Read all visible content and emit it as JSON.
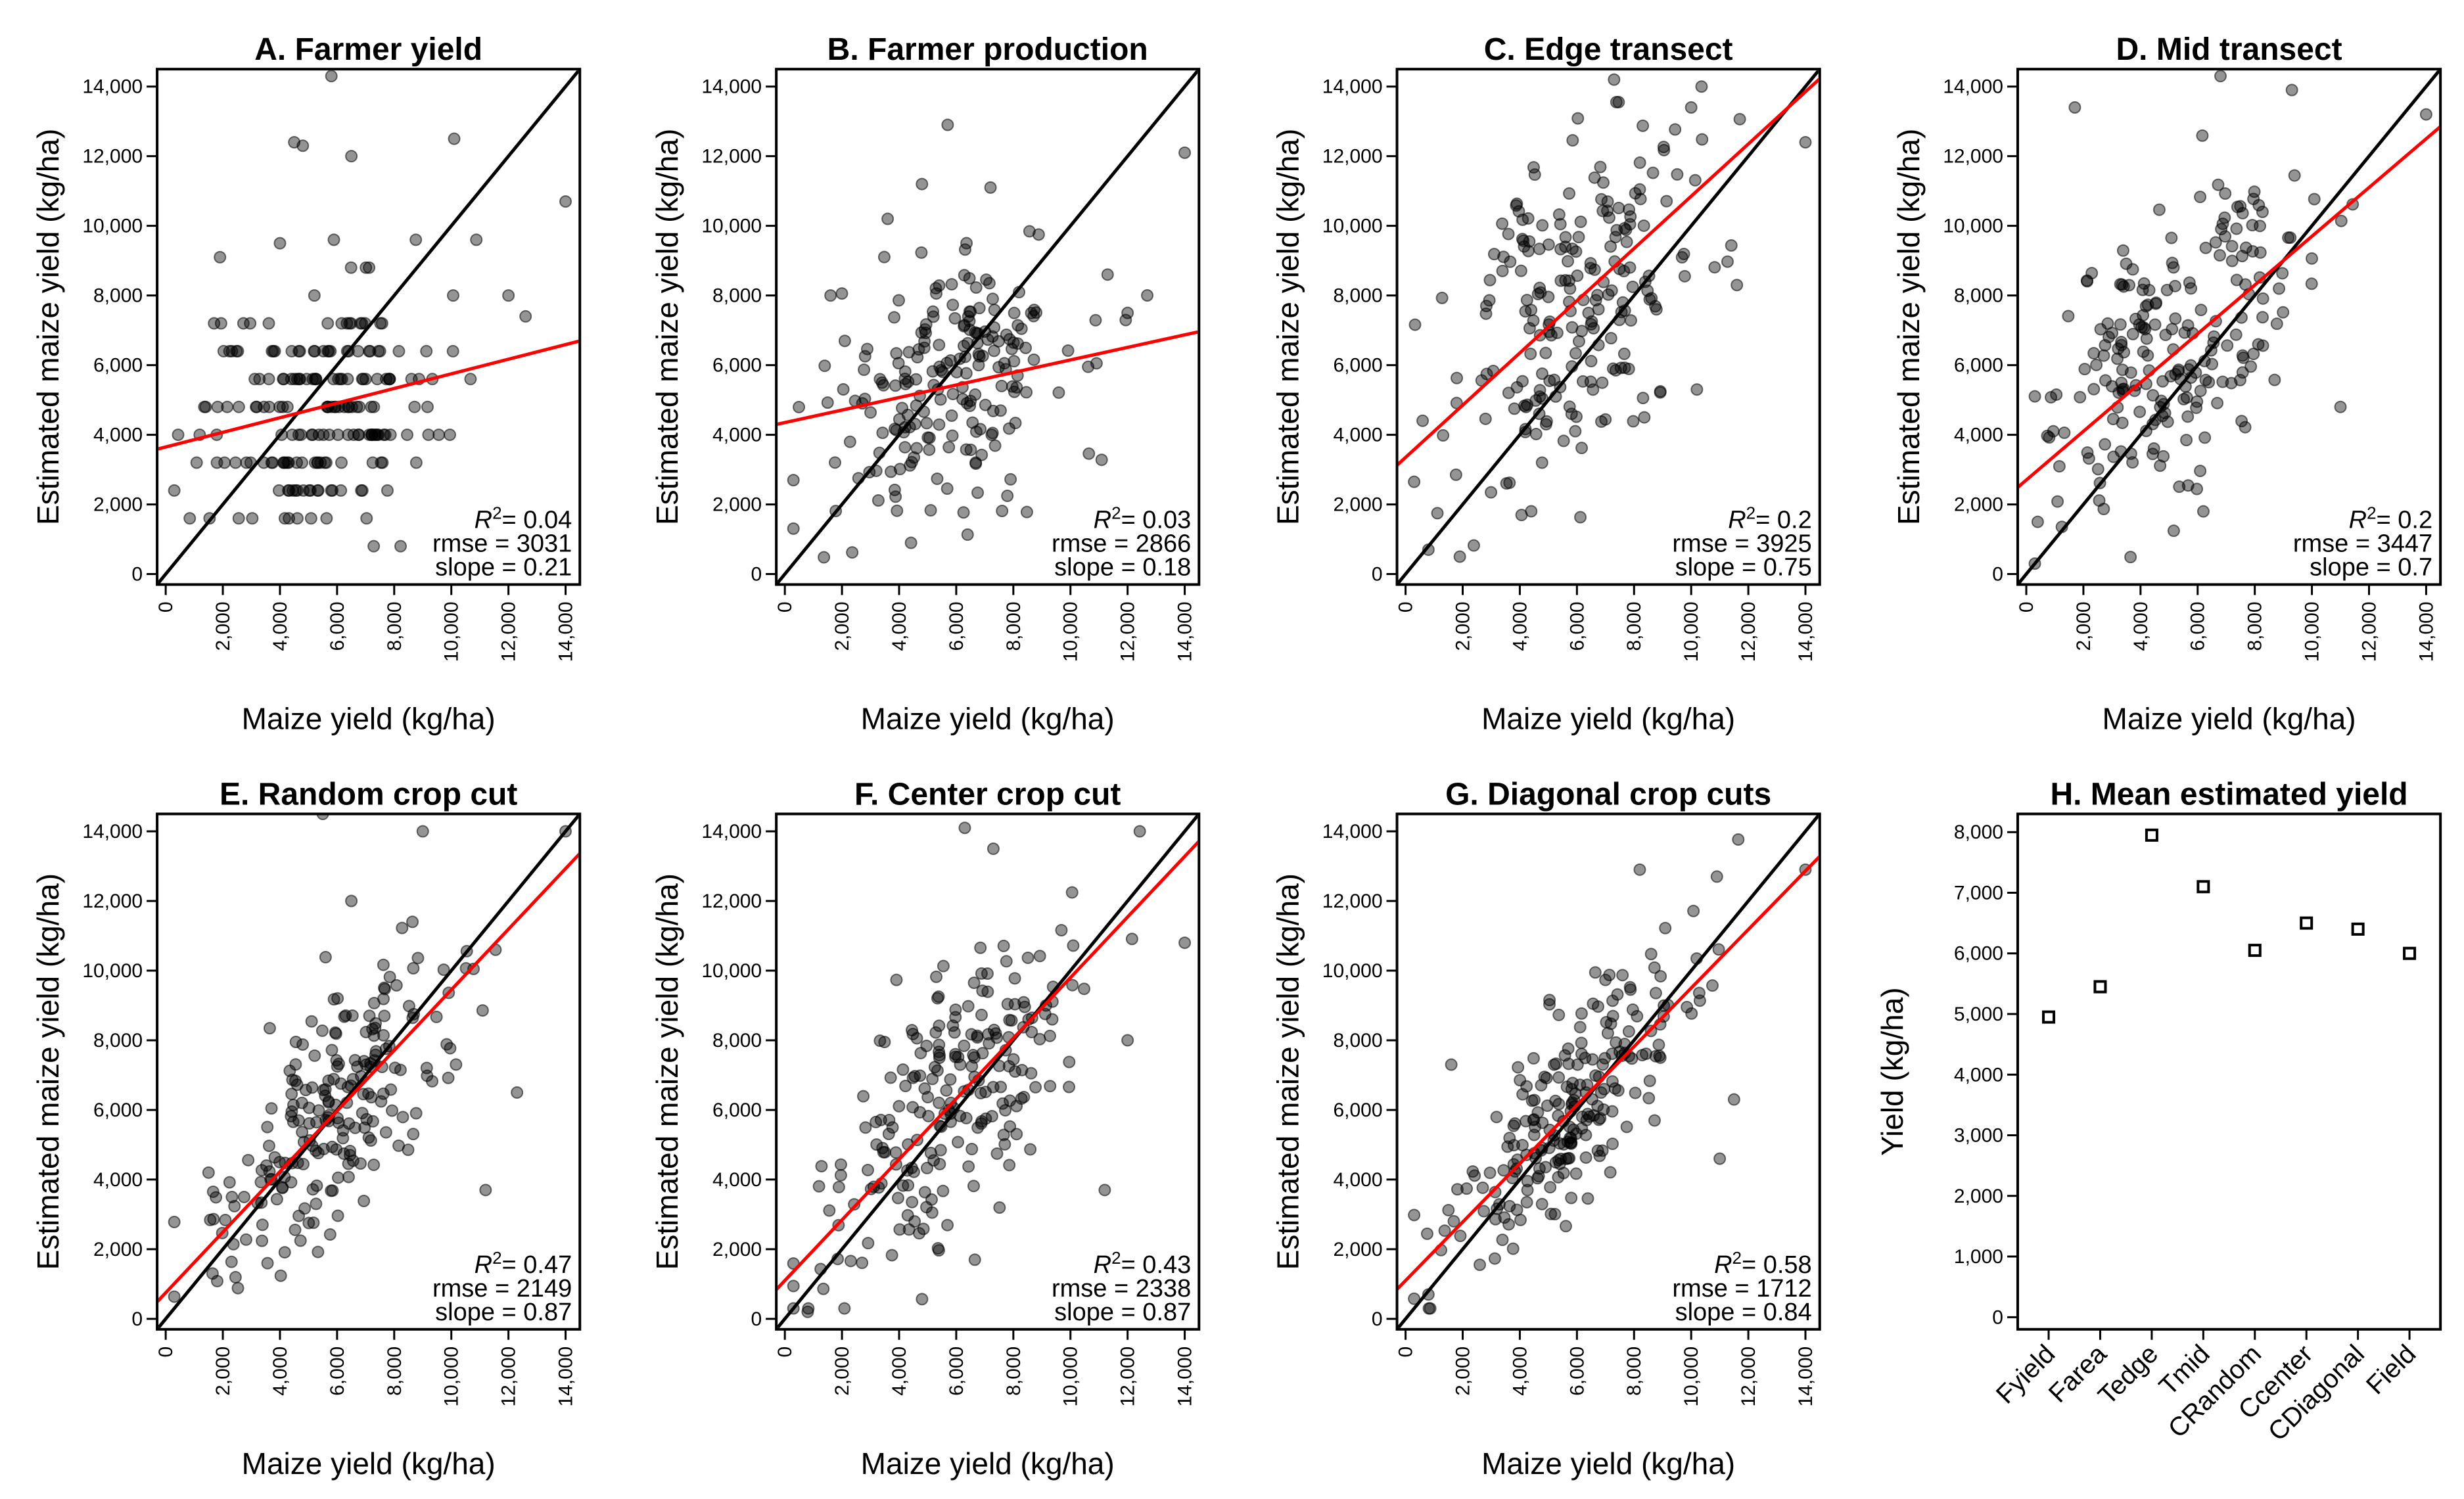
{
  "colors": {
    "point": "#000000",
    "identity_line": "#000000",
    "fit_line": "#ff0000"
  },
  "chart_data": [
    {
      "panel": "A",
      "type": "scatter",
      "title": "A.  Farmer yield",
      "xlabel": "Maize yield (kg/ha)",
      "ylabel": "Estimated maize yield (kg/ha)",
      "xlim": [
        -300,
        14500
      ],
      "ylim": [
        -300,
        14500
      ],
      "xticks": [
        "0",
        "2,000",
        "4,000",
        "6,000",
        "8,000",
        "10,000",
        "12,000",
        "14,000"
      ],
      "yticks": [
        "0",
        "2,000",
        "4,000",
        "6,000",
        "8,000",
        "10,000",
        "12,000",
        "14,000"
      ],
      "fit": {
        "intercept": 3650,
        "slope": 0.21
      },
      "stats": {
        "r2": "= 0.04",
        "rmse": "rmse = 3031",
        "slope": "slope = 0.21"
      },
      "n_points": 200,
      "cluster": {
        "mx": 5200,
        "sx": 2100,
        "my": 4700,
        "sy": 1750,
        "rho": 0.2,
        "ysnap": 800
      },
      "outliers": [
        [
          5800,
          14300
        ],
        [
          4500,
          12400
        ],
        [
          4800,
          12300
        ],
        [
          6500,
          12000
        ],
        [
          10100,
          12500
        ],
        [
          14000,
          10700
        ],
        [
          12000,
          8000
        ],
        [
          12600,
          7400
        ],
        [
          1900,
          9100
        ],
        [
          4000,
          9500
        ]
      ]
    },
    {
      "panel": "B",
      "type": "scatter",
      "title": "B.  Farmer production",
      "xlabel": "Maize yield (kg/ha)",
      "ylabel": "Estimated maize yield (kg/ha)",
      "xlim": [
        -300,
        14500
      ],
      "ylim": [
        -300,
        14500
      ],
      "xticks": [
        "0",
        "2,000",
        "4,000",
        "6,000",
        "8,000",
        "10,000",
        "12,000",
        "14,000"
      ],
      "yticks": [
        "0",
        "2,000",
        "4,000",
        "6,000",
        "8,000",
        "10,000",
        "12,000",
        "14,000"
      ],
      "fit": {
        "intercept": 4350,
        "slope": 0.18
      },
      "stats": {
        "r2": "= 0.03",
        "rmse": "rmse = 2866",
        "slope": "slope = 0.18"
      },
      "n_points": 205,
      "cluster": {
        "mx": 5600,
        "sx": 2200,
        "my": 5400,
        "sy": 1900,
        "rho": 0.25,
        "ysnap": 0
      },
      "outliers": [
        [
          5700,
          12900
        ],
        [
          14000,
          12100
        ],
        [
          4800,
          11200
        ],
        [
          3600,
          10200
        ],
        [
          7200,
          11100
        ],
        [
          1600,
          8000
        ],
        [
          11300,
          8600
        ],
        [
          12000,
          7500
        ]
      ]
    },
    {
      "panel": "C",
      "type": "scatter",
      "title": "C.  Edge transect",
      "xlabel": "Maize yield (kg/ha)",
      "ylabel": "Estimated maize yield (kg/ha)",
      "xlim": [
        -300,
        14500
      ],
      "ylim": [
        -300,
        14500
      ],
      "xticks": [
        "0",
        "2,000",
        "4,000",
        "6,000",
        "8,000",
        "10,000",
        "12,000",
        "14,000"
      ],
      "yticks": [
        "0",
        "2,000",
        "4,000",
        "6,000",
        "8,000",
        "10,000",
        "12,000",
        "14,000"
      ],
      "fit": {
        "intercept": 3350,
        "slope": 0.75
      },
      "stats": {
        "r2": "= 0.2",
        "rmse": "rmse = 3925",
        "slope": "slope = 0.75"
      },
      "n_points": 210,
      "cluster": {
        "mx": 5800,
        "sx": 2200,
        "my": 7900,
        "sy": 2700,
        "rho": 0.45,
        "ysnap": 0
      },
      "outliers": [
        [
          7300,
          14200
        ],
        [
          14000,
          12400
        ],
        [
          10000,
          13400
        ],
        [
          800,
          700
        ],
        [
          1900,
          500
        ],
        [
          11600,
          8300
        ],
        [
          10200,
          5300
        ]
      ]
    },
    {
      "panel": "D",
      "type": "scatter",
      "title": "D.  Mid transect",
      "xlabel": "Maize yield (kg/ha)",
      "ylabel": "Estimated maize yield (kg/ha)",
      "xlim": [
        -300,
        14500
      ],
      "ylim": [
        -300,
        14500
      ],
      "xticks": [
        "0",
        "2,000",
        "4,000",
        "6,000",
        "8,000",
        "10,000",
        "12,000",
        "14,000"
      ],
      "yticks": [
        "0",
        "2,000",
        "4,000",
        "6,000",
        "8,000",
        "10,000",
        "12,000",
        "14,000"
      ],
      "fit": {
        "intercept": 2700,
        "slope": 0.7
      },
      "stats": {
        "r2": "= 0.2",
        "rmse": "rmse = 3447",
        "slope": "slope = 0.7"
      },
      "n_points": 210,
      "cluster": {
        "mx": 5400,
        "sx": 2300,
        "my": 6900,
        "sy": 2400,
        "rho": 0.5,
        "ysnap": 0
      },
      "outliers": [
        [
          1700,
          13400
        ],
        [
          6800,
          14300
        ],
        [
          9300,
          13900
        ],
        [
          14000,
          13200
        ],
        [
          11000,
          4800
        ],
        [
          6200,
          1800
        ],
        [
          400,
          1500
        ]
      ]
    },
    {
      "panel": "E",
      "type": "scatter",
      "title": "E.  Random crop cut",
      "xlabel": "Maize yield (kg/ha)",
      "ylabel": "Estimated maize yield (kg/ha)",
      "xlim": [
        -300,
        14500
      ],
      "ylim": [
        -300,
        14500
      ],
      "xticks": [
        "0",
        "2,000",
        "4,000",
        "6,000",
        "8,000",
        "10,000",
        "12,000",
        "14,000"
      ],
      "yticks": [
        "0",
        "2,000",
        "4,000",
        "6,000",
        "8,000",
        "10,000",
        "12,000",
        "14,000"
      ],
      "fit": {
        "intercept": 750,
        "slope": 0.87
      },
      "stats": {
        "r2": "= 0.47",
        "rmse": "rmse = 2149",
        "slope": "slope = 0.87"
      },
      "n_points": 210,
      "cluster": {
        "mx": 5800,
        "sx": 2200,
        "my": 5800,
        "sy": 2300,
        "rho": 0.7,
        "ysnap": 0
      },
      "outliers": [
        [
          5500,
          14500
        ],
        [
          9000,
          14000
        ],
        [
          14000,
          14000
        ],
        [
          6500,
          12000
        ],
        [
          11200,
          3700
        ],
        [
          12300,
          6500
        ],
        [
          1500,
          4200
        ]
      ]
    },
    {
      "panel": "F",
      "type": "scatter",
      "title": "F.  Center crop cut",
      "xlabel": "Maize yield (kg/ha)",
      "ylabel": "Estimated maize yield (kg/ha)",
      "xlim": [
        -300,
        14500
      ],
      "ylim": [
        -300,
        14500
      ],
      "xticks": [
        "0",
        "2,000",
        "4,000",
        "6,000",
        "8,000",
        "10,000",
        "12,000",
        "14,000"
      ],
      "yticks": [
        "0",
        "2,000",
        "4,000",
        "6,000",
        "8,000",
        "10,000",
        "12,000",
        "14,000"
      ],
      "fit": {
        "intercept": 1100,
        "slope": 0.87
      },
      "stats": {
        "r2": "= 0.43",
        "rmse": "rmse = 2338",
        "slope": "slope = 0.87"
      },
      "n_points": 215,
      "cluster": {
        "mx": 5900,
        "sx": 2200,
        "my": 6300,
        "sy": 2400,
        "rho": 0.65,
        "ysnap": 0
      },
      "outliers": [
        [
          6300,
          14100
        ],
        [
          7300,
          13500
        ],
        [
          14000,
          10800
        ],
        [
          11200,
          3700
        ],
        [
          800,
          200
        ],
        [
          12000,
          8000
        ]
      ]
    },
    {
      "panel": "G",
      "type": "scatter",
      "title": "G.  Diagonal crop cuts",
      "xlabel": "Maize yield (kg/ha)",
      "ylabel": "Estimated maize yield (kg/ha)",
      "xlim": [
        -300,
        14500
      ],
      "ylim": [
        -300,
        14500
      ],
      "xticks": [
        "0",
        "2,000",
        "4,000",
        "6,000",
        "8,000",
        "10,000",
        "12,000",
        "14,000"
      ],
      "yticks": [
        "0",
        "2,000",
        "4,000",
        "6,000",
        "8,000",
        "10,000",
        "12,000",
        "14,000"
      ],
      "fit": {
        "intercept": 1100,
        "slope": 0.84
      },
      "stats": {
        "r2": "= 0.58",
        "rmse": "rmse = 1712",
        "slope": "slope = 0.84"
      },
      "n_points": 220,
      "cluster": {
        "mx": 5900,
        "sx": 2100,
        "my": 6100,
        "sy": 2200,
        "rho": 0.78,
        "ysnap": 0
      },
      "outliers": [
        [
          8200,
          12900
        ],
        [
          14000,
          12900
        ],
        [
          10900,
          12700
        ],
        [
          1600,
          7300
        ],
        [
          11000,
          4600
        ],
        [
          11500,
          6300
        ],
        [
          800,
          700
        ]
      ]
    },
    {
      "panel": "H",
      "type": "dot",
      "title": "H.  Mean estimated yield",
      "ylabel": "Yield (kg/ha)",
      "ylim": [
        -200,
        8300
      ],
      "yticks": [
        "0",
        "1,000",
        "2,000",
        "3,000",
        "4,000",
        "5,000",
        "6,000",
        "7,000",
        "8,000"
      ],
      "categories": [
        "Fyield",
        "Farea",
        "Tedge",
        "Tmid",
        "CRandom",
        "Ccenter",
        "CDiagonal",
        "Field"
      ],
      "values": [
        4950,
        5450,
        7950,
        7100,
        6050,
        6500,
        6400,
        6000
      ]
    }
  ]
}
